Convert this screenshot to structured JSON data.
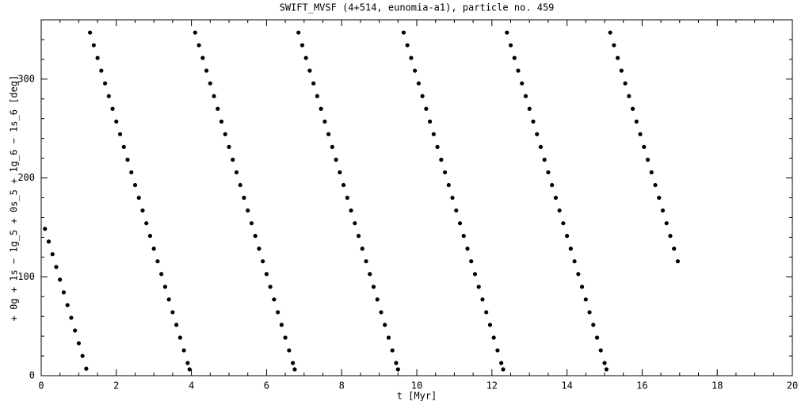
{
  "chart_data": {
    "type": "scatter",
    "title": "SWIFT_MVSF (4+514, eunomia-a1), particle no. 459",
    "x_label": "t [Myr]",
    "y_label": "+ 0g + 1s − 1g_5 + 0s_5 + 1g_6 − 1s_6 [deg]",
    "color": "#000000",
    "xlim": [
      0,
      20
    ],
    "xticks": [
      0,
      2,
      4,
      6,
      8,
      10,
      12,
      14,
      16,
      18,
      20
    ],
    "ylim": [
      0,
      360
    ],
    "yticks": [
      0,
      100,
      200,
      300
    ],
    "x": [
      0.1,
      0.2,
      0.3,
      0.4,
      0.5,
      0.6,
      0.7,
      0.8,
      0.9,
      1.0,
      1.1,
      1.2,
      1.3,
      1.4,
      1.5,
      1.6,
      1.7,
      1.8,
      1.9,
      2.0,
      2.1,
      2.2,
      2.3,
      2.4,
      2.5,
      2.6,
      2.7,
      2.8,
      2.9,
      3.0,
      3.1,
      3.2,
      3.3,
      3.4,
      3.5,
      3.6,
      3.7,
      3.8,
      3.9,
      3.95,
      4.1,
      4.2,
      4.3,
      4.4,
      4.5,
      4.6,
      4.7,
      4.8,
      4.9,
      5.0,
      5.1,
      5.2,
      5.3,
      5.4,
      5.5,
      5.6,
      5.7,
      5.8,
      5.9,
      6.0,
      6.1,
      6.2,
      6.3,
      6.4,
      6.5,
      6.6,
      6.7,
      6.75,
      6.85,
      6.95,
      7.05,
      7.15,
      7.25,
      7.35,
      7.45,
      7.55,
      7.65,
      7.75,
      7.85,
      7.95,
      8.05,
      8.15,
      8.25,
      8.35,
      8.45,
      8.55,
      8.65,
      8.75,
      8.85,
      8.95,
      9.05,
      9.15,
      9.25,
      9.35,
      9.45,
      9.5,
      9.65,
      9.75,
      9.85,
      9.95,
      10.05,
      10.15,
      10.25,
      10.35,
      10.45,
      10.55,
      10.65,
      10.75,
      10.85,
      10.95,
      11.05,
      11.15,
      11.25,
      11.35,
      11.45,
      11.55,
      11.65,
      11.75,
      11.85,
      11.95,
      12.05,
      12.15,
      12.25,
      12.3,
      12.4,
      12.5,
      12.6,
      12.7,
      12.8,
      12.9,
      13.0,
      13.1,
      13.2,
      13.3,
      13.4,
      13.5,
      13.6,
      13.7,
      13.8,
      13.9,
      14.0,
      14.1,
      14.2,
      14.3,
      14.4,
      14.5,
      14.6,
      14.7,
      14.8,
      14.9,
      15.0,
      15.05,
      15.15,
      15.25,
      15.35,
      15.45,
      15.55,
      15.65,
      15.75,
      15.85,
      15.95,
      16.05,
      16.15,
      16.25,
      16.35,
      16.45,
      16.55,
      16.65,
      16.75,
      16.85,
      16.95
    ],
    "values": [
      148.6,
      135.7,
      122.9,
      110.0,
      97.1,
      84.3,
      71.4,
      58.6,
      45.7,
      32.8,
      20.0,
      7.1,
      347.1,
      334.3,
      321.4,
      308.6,
      295.7,
      282.8,
      270.0,
      257.1,
      244.3,
      231.4,
      218.5,
      205.7,
      192.8,
      180.0,
      167.1,
      154.2,
      141.4,
      128.5,
      115.7,
      102.8,
      89.9,
      77.1,
      64.2,
      51.4,
      38.5,
      25.6,
      12.8,
      6.4,
      347.1,
      334.3,
      321.4,
      308.6,
      295.7,
      282.8,
      270.0,
      257.1,
      244.3,
      231.4,
      218.5,
      205.7,
      192.8,
      180.0,
      167.1,
      154.2,
      141.4,
      128.5,
      115.7,
      102.8,
      89.9,
      77.1,
      64.2,
      51.4,
      38.5,
      25.6,
      12.8,
      6.4,
      347.1,
      334.3,
      321.4,
      308.6,
      295.7,
      282.8,
      270.0,
      257.1,
      244.3,
      231.4,
      218.5,
      205.7,
      192.8,
      180.0,
      167.1,
      154.2,
      141.4,
      128.5,
      115.7,
      102.8,
      89.9,
      77.1,
      64.2,
      51.4,
      38.5,
      25.6,
      12.8,
      6.4,
      347.1,
      334.3,
      321.4,
      308.6,
      295.7,
      282.8,
      270.0,
      257.1,
      244.3,
      231.4,
      218.5,
      205.7,
      192.8,
      180.0,
      167.1,
      154.2,
      141.4,
      128.5,
      115.7,
      102.8,
      89.9,
      77.1,
      64.2,
      51.4,
      38.5,
      25.6,
      12.8,
      6.4,
      347.1,
      334.3,
      321.4,
      308.6,
      295.7,
      282.8,
      270.0,
      257.1,
      244.3,
      231.4,
      218.5,
      205.7,
      192.8,
      180.0,
      167.1,
      154.2,
      141.4,
      128.5,
      115.7,
      102.8,
      89.9,
      77.1,
      64.2,
      51.4,
      38.5,
      25.6,
      12.8,
      6.4,
      347.1,
      334.3,
      321.4,
      308.6,
      295.7,
      282.8,
      270.0,
      257.1,
      244.3,
      231.4,
      218.5,
      205.7,
      192.8,
      180.0,
      167.1,
      154.2,
      141.4,
      128.5,
      115.7
    ]
  }
}
